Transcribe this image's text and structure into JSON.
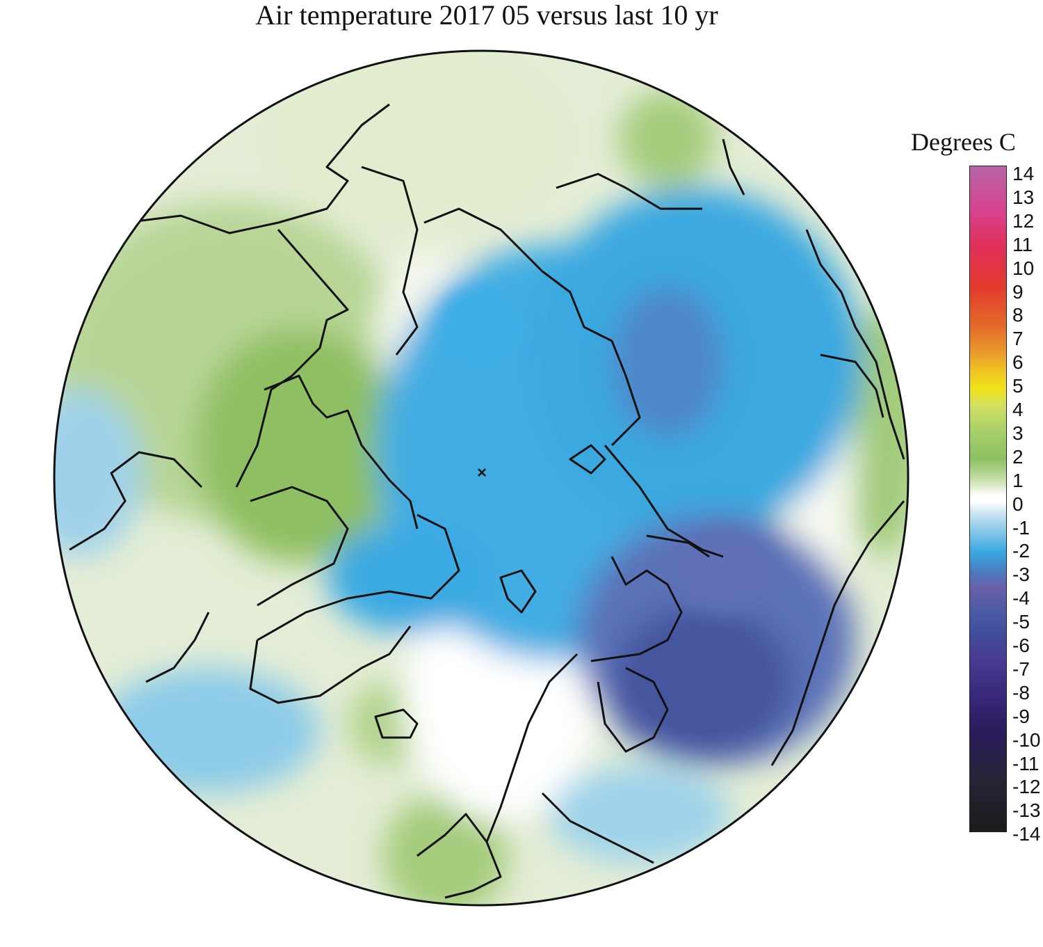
{
  "title": "Air temperature 2017 05 versus last 10 yr",
  "legend": {
    "title": "Degrees C",
    "ticks": [
      "14",
      "13",
      "12",
      "11",
      "10",
      "9",
      "8",
      "7",
      "6",
      "5",
      "4",
      "3",
      "2",
      "1",
      "0",
      "-1",
      "-2",
      "-3",
      "-4",
      "-5",
      "-6",
      "-7",
      "-8",
      "-9",
      "-10",
      "-11",
      "-12",
      "-13",
      "-14"
    ]
  },
  "colors": {
    "positive_green": "#8cc063",
    "light_green": "#dce9c4",
    "neutral_white": "#ffffff",
    "light_blue": "#a8d6ea",
    "blue": "#3aa8e0",
    "violet": "#6a5fa8",
    "dark_indigo": "#3f4f9a"
  }
}
